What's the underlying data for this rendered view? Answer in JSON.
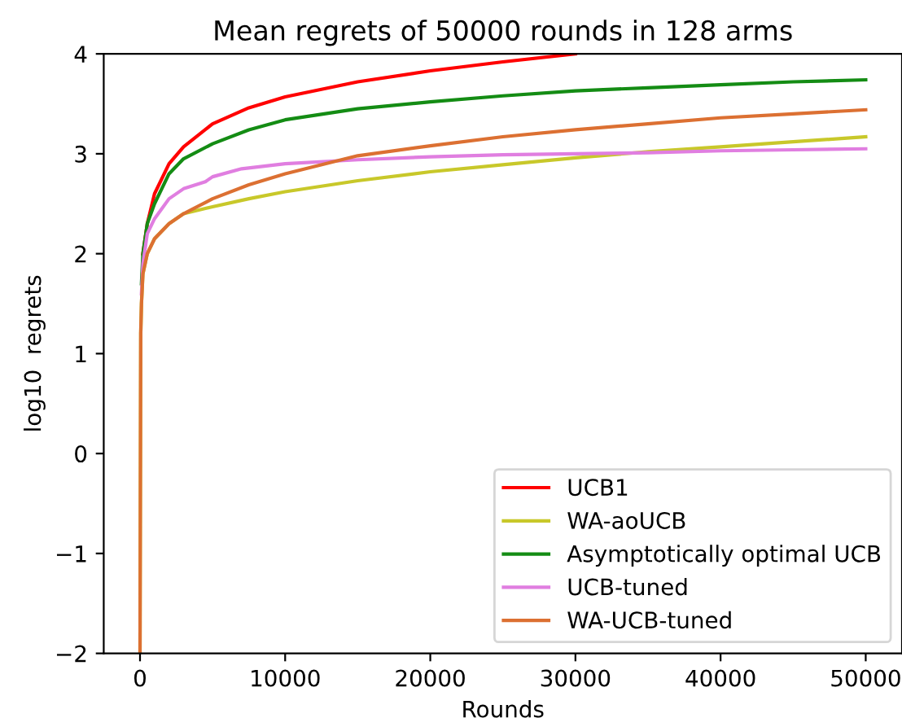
{
  "chart_data": {
    "type": "line",
    "title": "Mean regrets of 50000 rounds in 128 arms",
    "xlabel": "Rounds",
    "ylabel": "log10  regrets",
    "xlim": [
      -2500,
      52500
    ],
    "ylim": [
      -2,
      4
    ],
    "xticks": [
      0,
      10000,
      20000,
      30000,
      40000,
      50000
    ],
    "yticks": [
      {
        "value": -2,
        "label": "−2"
      },
      {
        "value": -1,
        "label": "−1"
      },
      0,
      1,
      2,
      3,
      4
    ],
    "legend": "bottom right",
    "grid": false,
    "series": [
      {
        "name": "UCB1",
        "color": "#ff0000",
        "x": [
          200,
          500,
          1000,
          2000,
          3000,
          5000,
          7500,
          10000,
          15000,
          20000,
          25000,
          30000
        ],
        "values": [
          2.0,
          2.3,
          2.6,
          2.9,
          3.07,
          3.3,
          3.46,
          3.57,
          3.72,
          3.83,
          3.92,
          4.0
        ]
      },
      {
        "name": "WA-aoUCB",
        "color": "#c8c82a",
        "x": [
          0,
          50,
          100,
          200,
          500,
          1000,
          2000,
          3000,
          5000,
          7500,
          10000,
          15000,
          20000,
          25000,
          30000,
          35000,
          40000,
          45000,
          50000
        ],
        "values": [
          -2,
          1.2,
          1.5,
          1.8,
          2.0,
          2.15,
          2.3,
          2.4,
          2.47,
          2.55,
          2.62,
          2.73,
          2.82,
          2.89,
          2.96,
          3.02,
          3.07,
          3.12,
          3.17
        ]
      },
      {
        "name": "Asymptotically optimal UCB",
        "color": "#148c14",
        "x": [
          100,
          200,
          500,
          1000,
          2000,
          3000,
          5000,
          7500,
          10000,
          15000,
          20000,
          25000,
          30000,
          35000,
          40000,
          45000,
          50000
        ],
        "values": [
          1.7,
          2.0,
          2.3,
          2.5,
          2.8,
          2.95,
          3.1,
          3.24,
          3.34,
          3.45,
          3.52,
          3.58,
          3.63,
          3.66,
          3.69,
          3.72,
          3.74
        ]
      },
      {
        "name": "UCB-tuned",
        "color": "#e07ee0",
        "x": [
          100,
          200,
          500,
          1000,
          2000,
          3000,
          4500,
          5000,
          7000,
          10000,
          15000,
          20000,
          25000,
          30000,
          35000,
          40000,
          45000,
          50000
        ],
        "values": [
          1.6,
          1.9,
          2.2,
          2.35,
          2.55,
          2.65,
          2.72,
          2.77,
          2.85,
          2.9,
          2.94,
          2.97,
          2.99,
          3.0,
          3.01,
          3.03,
          3.04,
          3.05
        ]
      },
      {
        "name": "WA-UCB-tuned",
        "color": "#dc7032",
        "x": [
          0,
          50,
          100,
          200,
          500,
          1000,
          2000,
          3000,
          5000,
          7500,
          10000,
          15000,
          20000,
          25000,
          30000,
          35000,
          40000,
          45000,
          50000
        ],
        "values": [
          -2,
          1.2,
          1.5,
          1.8,
          2.0,
          2.15,
          2.3,
          2.4,
          2.55,
          2.69,
          2.8,
          2.98,
          3.08,
          3.17,
          3.24,
          3.3,
          3.36,
          3.4,
          3.44
        ]
      }
    ]
  }
}
